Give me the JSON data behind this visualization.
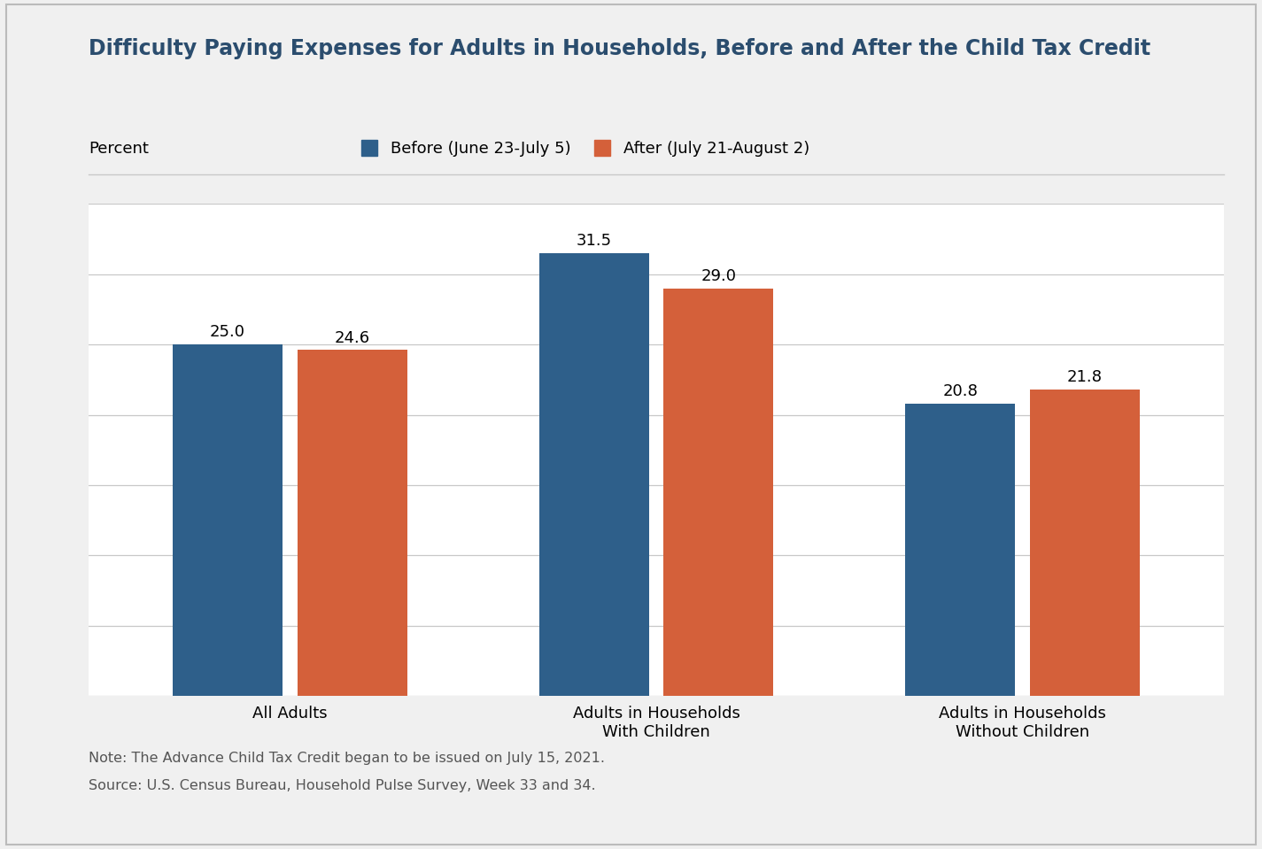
{
  "title": "Difficulty Paying Expenses for Adults in Households, Before and After the Child Tax Credit",
  "ylabel": "Percent",
  "background_color": "#ffffff",
  "outer_background": "#f0f0f0",
  "categories": [
    "All Adults",
    "Adults in Households\nWith Children",
    "Adults in Households\nWithout Children"
  ],
  "before_values": [
    25.0,
    31.5,
    20.8
  ],
  "after_values": [
    24.6,
    29.0,
    21.8
  ],
  "before_color": "#2e5f8a",
  "after_color": "#d4603a",
  "before_label": "Before (June 23-July 5)",
  "after_label": "After (July 21-August 2)",
  "ylim": [
    0,
    35
  ],
  "yticks": [
    0,
    5,
    10,
    15,
    20,
    25,
    30,
    35
  ],
  "note_line1": "Note: The Advance Child Tax Credit began to be issued on July 15, 2021.",
  "note_line2": "Source: U.S. Census Bureau, Household Pulse Survey, Week 33 and 34.",
  "title_color": "#2b4d6e",
  "text_color": "#555555",
  "bar_width": 0.3,
  "bar_gap": 0.04,
  "title_fontsize": 17,
  "label_fontsize": 13,
  "tick_fontsize": 13,
  "legend_fontsize": 13,
  "note_fontsize": 11.5,
  "value_fontsize": 13,
  "grid_color": "#c8c8c8",
  "border_color": "#bbbbbb"
}
